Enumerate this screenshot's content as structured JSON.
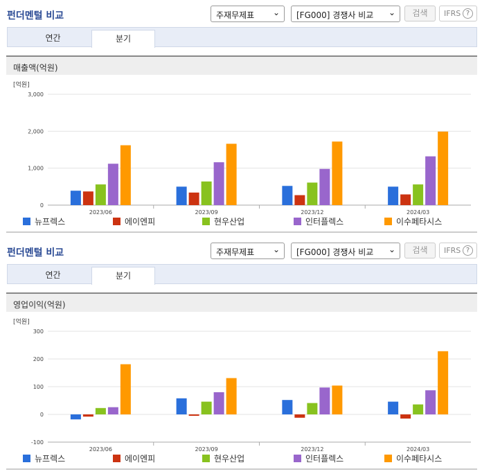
{
  "sections": [
    {
      "title": "펀더멘털 비교",
      "select1": "주재무제표",
      "select2": "[FG000] 경쟁사 비교",
      "search_label": "검색",
      "ifrs_label": "IFRS",
      "tabs": [
        "연간",
        "분기"
      ],
      "active_tab": "분기",
      "chart_title": "매출액(억원)"
    },
    {
      "title": "펀더멘털 비교",
      "select1": "주재무제표",
      "select2": "[FG000] 경쟁사 비교",
      "search_label": "검색",
      "ifrs_label": "IFRS",
      "tabs": [
        "연간",
        "분기"
      ],
      "active_tab": "분기",
      "chart_title": "영업이익(억원)"
    }
  ],
  "colors": {
    "뉴프렉스": "#2a6fdb",
    "에이엔피": "#cc3311",
    "현우산업": "#88c21f",
    "인터플렉스": "#9966cc",
    "이수페타시스": "#ff9900"
  },
  "chart_data": [
    {
      "type": "bar",
      "title": "매출액(억원)",
      "unit_label": "[억원]",
      "categories": [
        "2023/06",
        "2023/09",
        "2023/12",
        "2024/03"
      ],
      "ylim": [
        0,
        3000
      ],
      "yticks": [
        0,
        1000,
        2000,
        3000
      ],
      "ytick_labels": [
        "0",
        "1,000",
        "2,000",
        "3,000"
      ],
      "grid": true,
      "legend": "bottom",
      "series": [
        {
          "name": "뉴프렉스",
          "values": [
            390,
            500,
            520,
            500
          ]
        },
        {
          "name": "에이엔피",
          "values": [
            370,
            340,
            270,
            290
          ]
        },
        {
          "name": "현우산업",
          "values": [
            560,
            640,
            610,
            560
          ]
        },
        {
          "name": "인터플렉스",
          "values": [
            1120,
            1160,
            980,
            1320
          ]
        },
        {
          "name": "이수페타시스",
          "values": [
            1620,
            1660,
            1720,
            1990
          ]
        }
      ]
    },
    {
      "type": "bar",
      "title": "영업이익(억원)",
      "unit_label": "[억원]",
      "categories": [
        "2023/06",
        "2023/09",
        "2023/12",
        "2024/03"
      ],
      "ylim": [
        -100,
        300
      ],
      "yticks": [
        -100,
        0,
        100,
        200,
        300
      ],
      "ytick_labels": [
        "-100",
        "0",
        "100",
        "200",
        "300"
      ],
      "grid": true,
      "legend": "bottom",
      "series": [
        {
          "name": "뉴프렉스",
          "values": [
            -18,
            58,
            52,
            46
          ]
        },
        {
          "name": "에이엔피",
          "values": [
            -8,
            -5,
            -12,
            -15
          ]
        },
        {
          "name": "현우산업",
          "values": [
            23,
            46,
            41,
            36
          ]
        },
        {
          "name": "인터플렉스",
          "values": [
            26,
            80,
            97,
            87
          ]
        },
        {
          "name": "이수페타시스",
          "values": [
            181,
            131,
            104,
            228
          ]
        }
      ]
    }
  ]
}
